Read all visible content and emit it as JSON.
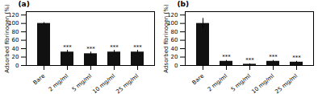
{
  "chart_data": [
    {
      "type": "bar",
      "title": "(a)",
      "categories": [
        "Bare",
        "2 mg/ml",
        "5 mg/ml",
        "10 mg/ml",
        "25 mg/ml"
      ],
      "values": [
        100,
        32,
        28,
        32,
        32
      ],
      "errors": [
        2,
        4,
        4,
        4,
        4
      ],
      "sig_labels": [
        null,
        "***",
        "***",
        "***",
        "***"
      ],
      "color": "#111111",
      "ylabel": "Adsorbed fibrinogen (%)",
      "ylim": [
        0,
        128
      ],
      "yticks": [
        0,
        20,
        40,
        60,
        80,
        100,
        120
      ],
      "grid": false
    },
    {
      "type": "bar",
      "title": "(b)",
      "categories": [
        "Bare",
        "2 mg/ml",
        "5 mg/ml",
        "10 mg/ml",
        "25 mg/ml"
      ],
      "values": [
        100,
        10,
        3,
        10,
        8
      ],
      "errors": [
        12,
        2,
        1,
        2,
        2
      ],
      "sig_labels": [
        null,
        "***",
        "***",
        "***",
        "***"
      ],
      "color": "#111111",
      "ylabel": "Adsorbed fibrinogen (%)",
      "ylim": [
        0,
        128
      ],
      "yticks": [
        0,
        20,
        40,
        60,
        80,
        100,
        120
      ],
      "grid": false
    }
  ]
}
